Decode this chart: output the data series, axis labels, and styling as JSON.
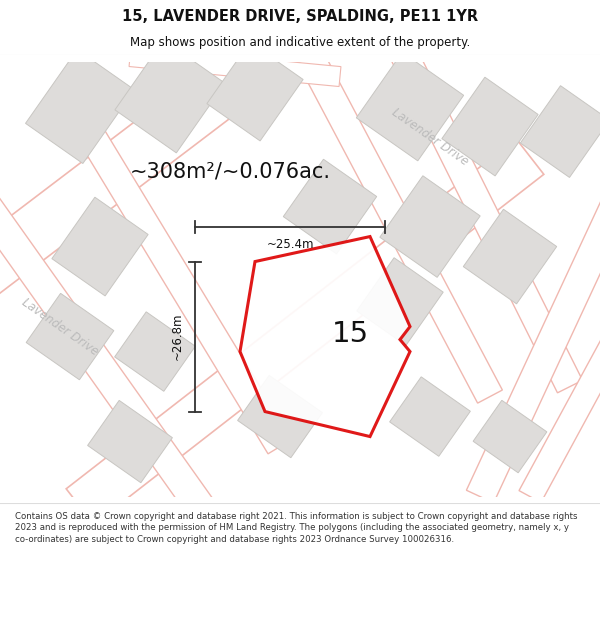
{
  "title": "15, LAVENDER DRIVE, SPALDING, PE11 1YR",
  "subtitle": "Map shows position and indicative extent of the property.",
  "area_text": "~308m²/~0.076ac.",
  "number_label": "15",
  "dim_width": "~25.4m",
  "dim_height": "~26.8m",
  "street_label_diagonal": "Lavender Drive",
  "street_label_left": "Lavender Drive",
  "footer": "Contains OS data © Crown copyright and database right 2021. This information is subject to Crown copyright and database rights 2023 and is reproduced with the permission of HM Land Registry. The polygons (including the associated geometry, namely x, y co-ordinates) are subject to Crown copyright and database rights 2023 Ordnance Survey 100026316.",
  "map_bg": "#f7f6f4",
  "road_color": "#f0b8b0",
  "road_lw": 1.0,
  "road_fill": "#f7f6f4",
  "building_color": "#dedcda",
  "building_edge": "#c8c6c2",
  "red_outline": "#dd0000",
  "title_color": "#111111",
  "footer_color": "#333333",
  "dim_color": "#111111",
  "street_text_color": "#bbbbbb"
}
